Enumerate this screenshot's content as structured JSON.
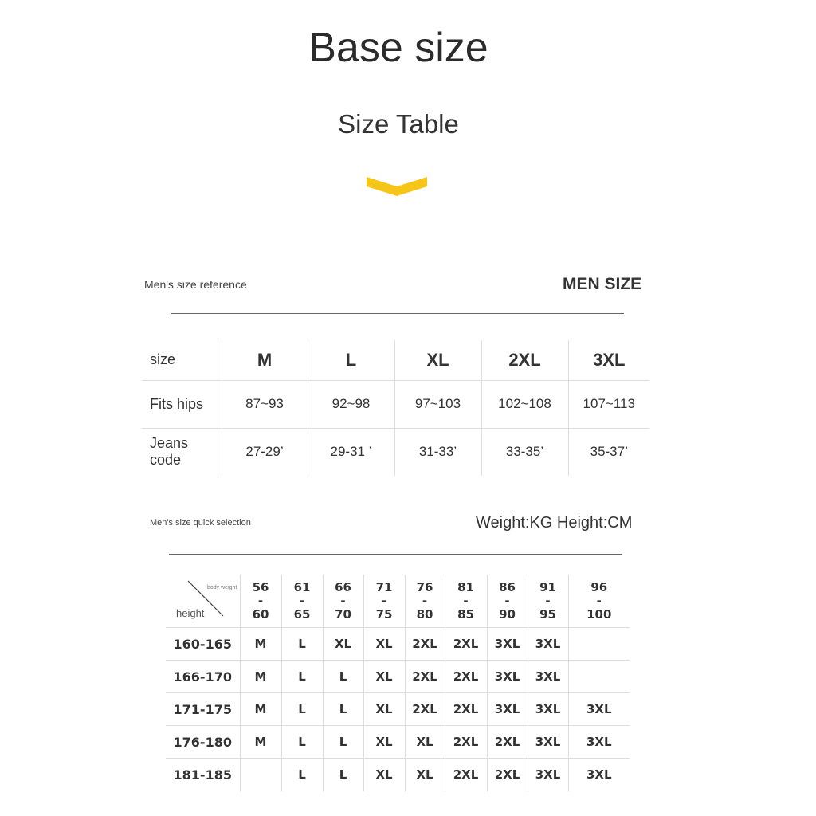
{
  "title": "Base size",
  "subtitle": "Size Table",
  "accent": "#f5c518",
  "ref": {
    "label": "Men's size reference",
    "heading": "MEN SIZE",
    "header": [
      "size",
      "M",
      "L",
      "XL",
      "2XL",
      "3XL"
    ],
    "rows": [
      [
        "Fits hips",
        "87~93",
        "92~98",
        "97~103",
        "102~108",
        "107~113"
      ],
      [
        "Jeans code",
        "27-29’",
        "29-31 ’",
        "31-33’",
        "33-35’",
        "35-37’"
      ]
    ]
  },
  "quick": {
    "label": "Men's size quick selection",
    "units": "Weight:KG Height:CM",
    "corner_top": "body weight",
    "corner_bottom": "height",
    "weights": [
      [
        "56",
        "-",
        "60"
      ],
      [
        "61",
        "-",
        "65"
      ],
      [
        "66",
        "-",
        "70"
      ],
      [
        "71",
        "-",
        "75"
      ],
      [
        "76",
        "-",
        "80"
      ],
      [
        "81",
        "-",
        "85"
      ],
      [
        "86",
        "-",
        "90"
      ],
      [
        "91",
        "-",
        "95"
      ],
      [
        "96",
        "-",
        "100"
      ]
    ],
    "rows": [
      [
        "160-165",
        "M",
        "L",
        "XL",
        "XL",
        "2XL",
        "2XL",
        "3XL",
        "3XL",
        ""
      ],
      [
        "166-170",
        "M",
        "L",
        "L",
        "XL",
        "2XL",
        "2XL",
        "3XL",
        "3XL",
        ""
      ],
      [
        "171-175",
        "M",
        "L",
        "L",
        "XL",
        "2XL",
        "2XL",
        "3XL",
        "3XL",
        "3XL"
      ],
      [
        "176-180",
        "M",
        "L",
        "L",
        "XL",
        "XL",
        "2XL",
        "2XL",
        "3XL",
        "3XL"
      ],
      [
        "181-185",
        "",
        "L",
        "L",
        "XL",
        "XL",
        "2XL",
        "2XL",
        "3XL",
        "3XL"
      ]
    ]
  }
}
